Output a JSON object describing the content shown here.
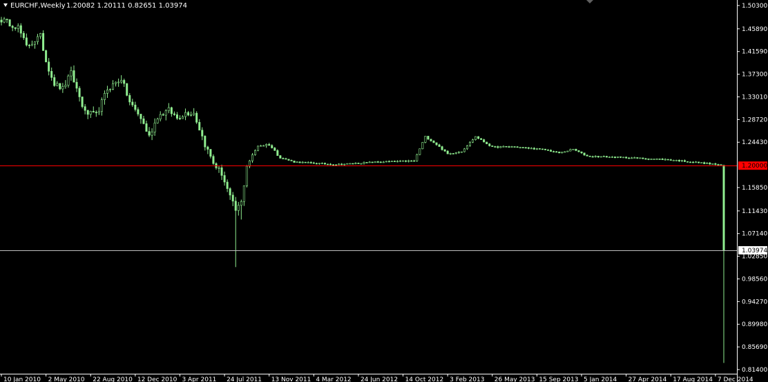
{
  "header": {
    "symbol": "EURCHF,Weekly",
    "ohlc": "1.20082 1.20111 0.82651 1.03974"
  },
  "colors": {
    "background": "#000000",
    "candle": "#90ee90",
    "axis": "#ffffff",
    "peg_line": "#ff0000",
    "bid_line": "#c0c0c0"
  },
  "chart_data": {
    "type": "candlestick",
    "x_tick_labels": [
      "10 Jan 2010",
      "2 May 2010",
      "22 Aug 2010",
      "12 Dec 2010",
      "3 Apr 2011",
      "24 Jul 2011",
      "13 Nov 2011",
      "4 Mar 2012",
      "24 Jun 2012",
      "14 Oct 2012",
      "3 Feb 2013",
      "26 May 2013",
      "15 Sep 2013",
      "5 Jan 2014",
      "27 Apr 2014",
      "17 Aug 2014",
      "7 Dec 2014"
    ],
    "y_tick_labels": [
      "1.50300",
      "1.45890",
      "1.41590",
      "1.37300",
      "1.33010",
      "1.28720",
      "1.24430",
      "1.15850",
      "1.11430",
      "1.07140",
      "1.02850",
      "0.98560",
      "0.94270",
      "0.89980",
      "0.85690",
      "0.81400"
    ],
    "ylim": [
      0.814,
      1.503
    ],
    "weeks": 260,
    "anchors": [
      [
        0,
        1.476
      ],
      [
        6,
        1.462
      ],
      [
        9,
        1.425
      ],
      [
        14,
        1.445
      ],
      [
        16,
        1.398
      ],
      [
        19,
        1.355
      ],
      [
        22,
        1.345
      ],
      [
        25,
        1.375
      ],
      [
        30,
        1.3
      ],
      [
        34,
        1.295
      ],
      [
        38,
        1.345
      ],
      [
        43,
        1.365
      ],
      [
        46,
        1.32
      ],
      [
        50,
        1.29
      ],
      [
        53,
        1.255
      ],
      [
        56,
        1.293
      ],
      [
        60,
        1.305
      ],
      [
        63,
        1.29
      ],
      [
        66,
        1.3
      ],
      [
        69,
        1.3
      ],
      [
        73,
        1.24
      ],
      [
        76,
        1.205
      ],
      [
        79,
        1.185
      ],
      [
        82,
        1.14
      ],
      [
        84,
        1.115
      ],
      [
        86,
        1.13
      ],
      [
        88,
        1.2
      ],
      [
        92,
        1.238
      ],
      [
        96,
        1.24
      ],
      [
        100,
        1.215
      ],
      [
        105,
        1.207
      ],
      [
        120,
        1.202
      ],
      [
        135,
        1.207
      ],
      [
        148,
        1.209
      ],
      [
        152,
        1.255
      ],
      [
        156,
        1.24
      ],
      [
        160,
        1.222
      ],
      [
        165,
        1.227
      ],
      [
        170,
        1.255
      ],
      [
        176,
        1.235
      ],
      [
        183,
        1.236
      ],
      [
        195,
        1.23
      ],
      [
        200,
        1.224
      ],
      [
        205,
        1.231
      ],
      [
        210,
        1.218
      ],
      [
        225,
        1.215
      ],
      [
        240,
        1.211
      ],
      [
        255,
        1.203
      ],
      [
        259,
        1.2008
      ]
    ],
    "last_candle": {
      "open": 1.20082,
      "high": 1.20111,
      "low": 0.82651,
      "close": 1.03974
    },
    "horizontal_lines": [
      {
        "name": "peg",
        "value": 1.2,
        "label": "1.20000"
      },
      {
        "name": "bid",
        "value": 1.03974,
        "label": "1.03974"
      }
    ],
    "grid": false
  }
}
